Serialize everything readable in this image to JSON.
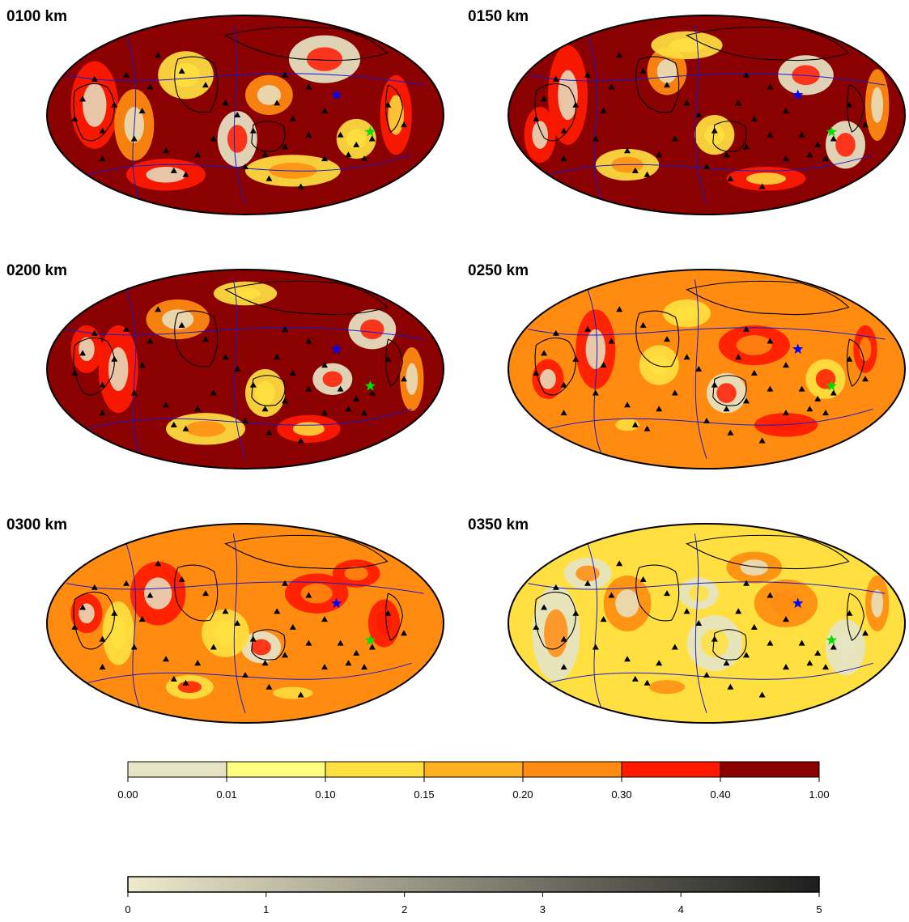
{
  "panels": [
    {
      "id": "p100",
      "title": "0100 km",
      "palette": "hot"
    },
    {
      "id": "p150",
      "title": "0150 km",
      "palette": "hot"
    },
    {
      "id": "p200",
      "title": "0200 km",
      "palette": "hot"
    },
    {
      "id": "p250",
      "title": "0250 km",
      "palette": "warm"
    },
    {
      "id": "p300",
      "title": "0300 km",
      "palette": "warm"
    },
    {
      "id": "p350",
      "title": "0350 km",
      "palette": "pale"
    }
  ],
  "colorbar_top": {
    "ticks": [
      "0.00",
      "0.01",
      "0.10",
      "0.15",
      "0.20",
      "0.30",
      "0.40",
      "1.00"
    ],
    "colors": [
      "#e6e4c4",
      "#ffff80",
      "#ffe040",
      "#ffb020",
      "#ff8c10",
      "#ff1a00",
      "#8b0000"
    ]
  },
  "colorbar_bottom": {
    "ticks": [
      "0",
      "1",
      "2",
      "3",
      "4",
      "5"
    ],
    "gradient": [
      "#eeeacc",
      "#1e1e1e"
    ]
  },
  "markers": {
    "blue_star_color": "#0000ff",
    "green_star_color": "#00e000",
    "station_color": "#000000"
  },
  "map_colors": {
    "ocean_hot": "#8b0000",
    "red": "#ff1a00",
    "orange": "#ff8c10",
    "yellow": "#ffe040",
    "pale": "#e6e4c4",
    "plate_boundary": "#1a1acc",
    "coast": "#000000"
  }
}
